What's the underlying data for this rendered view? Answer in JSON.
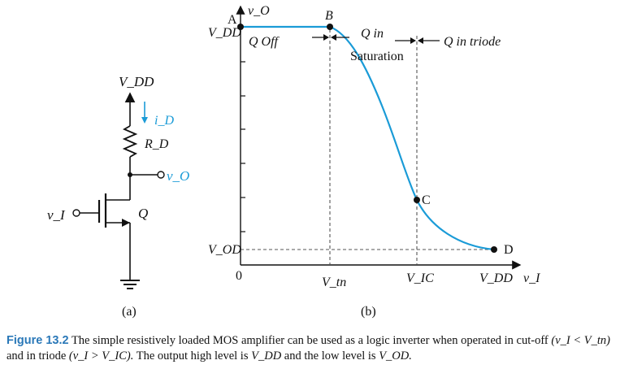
{
  "circuit": {
    "vdd": "V_DD",
    "current": "i_D",
    "resistor": "R_D",
    "output": "v_O",
    "input": "v_I",
    "transistor": "Q",
    "panel_label": "(a)"
  },
  "graph": {
    "y_axis_label": "v_O",
    "x_axis_label": "v_I",
    "y_vdd": "V_DD",
    "y_vod": "V_OD",
    "origin": "0",
    "x_vtn": "V_tn",
    "x_vic": "V_IC",
    "x_vdd": "V_DD",
    "point_a": "A",
    "point_b": "B",
    "point_c": "C",
    "point_d": "D",
    "region_off": "Q  Off",
    "region_sat_1": "Q in",
    "region_sat_2": "Saturation",
    "region_triode": "Q in triode",
    "panel_label": "(b)",
    "curve_color": "#1a9bd7"
  },
  "caption": {
    "figure_label": "Figure 13.2",
    "text_1": "The simple resistively loaded MOS amplifier can be used as a logic inverter when operated in cut-off",
    "cond_1": "(v_I < V_tn)",
    "text_2": "and in triode",
    "cond_2": "(v_I > V_IC).",
    "text_3": "The output high level is",
    "vdd": "V_DD",
    "text_4": "and the low level is",
    "vod": "V_OD."
  }
}
